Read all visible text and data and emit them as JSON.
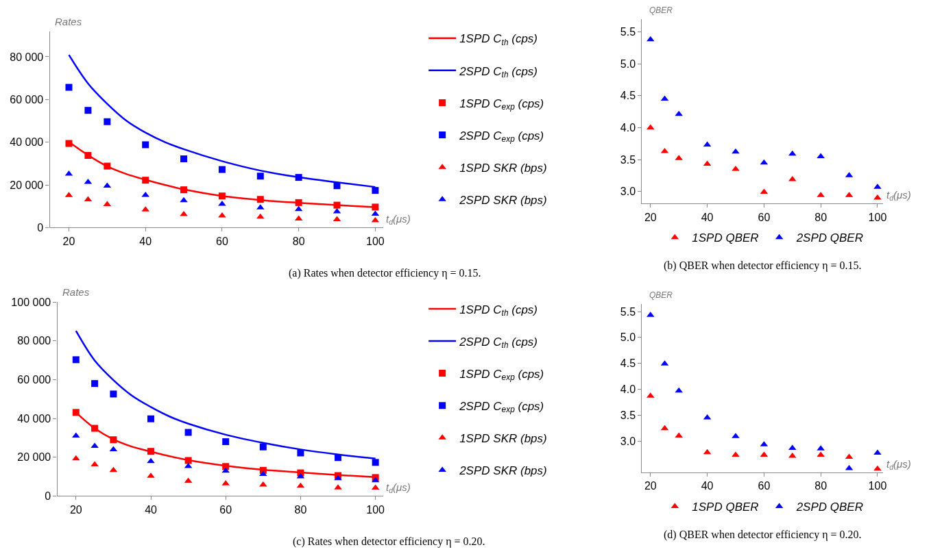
{
  "chart_data": [
    {
      "type": "scatter",
      "ylabel": "Rates",
      "xlabel": "t$_{d}$(μs)",
      "annotations": [
        "(a) Rates when detector efficiency η = 0.15."
      ],
      "legend": "right",
      "x": [
        20,
        25,
        30,
        40,
        50,
        60,
        70,
        80,
        90,
        100
      ],
      "xlim": [
        15,
        102
      ],
      "xticks": [
        20,
        40,
        60,
        80,
        100
      ],
      "ylim": [
        0,
        91800
      ],
      "yticks": [
        0,
        {
          "value": 20000,
          "label": "20 000"
        },
        {
          "value": 40000,
          "label": "40 000"
        },
        {
          "value": 60000,
          "label": "60 000"
        },
        {
          "value": 80000,
          "label": "80 000"
        }
      ],
      "series": [
        {
          "name": "1SPD C$_{th}$ (cps)",
          "type": "line",
          "color": "#ff0000",
          "x": [
            20,
            25,
            30,
            35,
            40,
            45,
            50,
            60,
            70,
            80,
            90,
            100
          ],
          "values": [
            40100,
            33900,
            28700,
            25100,
            22400,
            20000,
            17900,
            14800,
            12900,
            11600,
            10500,
            9600
          ]
        },
        {
          "name": "2SPD C$_{th}$ (cps)",
          "type": "line",
          "color": "#0000ff",
          "x": [
            20,
            25,
            30,
            35,
            40,
            45,
            50,
            60,
            70,
            80,
            90,
            100
          ],
          "values": [
            80900,
            67500,
            58000,
            50100,
            44500,
            40100,
            36700,
            31100,
            26700,
            23600,
            21200,
            19000
          ]
        },
        {
          "name": "1SPD C$_{exp}$ (cps)",
          "type": "scatter",
          "marker": "square",
          "color": "#ff0000",
          "values": [
            39400,
            33800,
            28800,
            22200,
            17700,
            14800,
            13200,
            11700,
            10500,
            9600
          ]
        },
        {
          "name": "2SPD C$_{exp}$ (cps)",
          "type": "scatter",
          "marker": "square",
          "color": "#0000ff",
          "values": [
            65700,
            54900,
            49600,
            38800,
            32200,
            27200,
            24100,
            23500,
            19600,
            17400
          ]
        },
        {
          "name": "1SPD SKR (bps)",
          "type": "scatter",
          "marker": "triangle",
          "color": "#ff0000",
          "values": [
            15100,
            13100,
            10900,
            8400,
            6200,
            5600,
            5000,
            4100,
            3800,
            3300
          ]
        },
        {
          "name": "2SPD SKR (bps)",
          "type": "scatter",
          "marker": "triangle",
          "color": "#0000ff",
          "values": [
            25100,
            21300,
            19500,
            15200,
            12700,
            11000,
            9300,
            8500,
            7500,
            6400
          ]
        }
      ]
    },
    {
      "type": "scatter",
      "ylabel": "QBER",
      "xlabel": "t$_{d}$(μs)",
      "annotations": [
        "(b) QBER when detector efficiency η = 0.15."
      ],
      "legend": "bottom",
      "marker": "triangle",
      "x": [
        20,
        25,
        30,
        40,
        50,
        60,
        70,
        80,
        90,
        100
      ],
      "xlim": [
        17,
        102
      ],
      "xticks": [
        20,
        40,
        60,
        80,
        100
      ],
      "ylim": [
        2.81,
        5.7
      ],
      "yticks": [
        {
          "value": 3.0,
          "label": "3.0"
        },
        3.5,
        {
          "value": 4.0,
          "label": "4.0"
        },
        4.5,
        {
          "value": 5.0,
          "label": "5.0"
        },
        5.5
      ],
      "series": [
        {
          "name": "1SPD QBER",
          "color": "#ff0000",
          "values": [
            4.0,
            3.63,
            3.52,
            3.43,
            3.35,
            2.99,
            3.19,
            2.94,
            2.94,
            2.9
          ]
        },
        {
          "name": "2SPD QBER",
          "color": "#0000ff",
          "values": [
            5.38,
            4.45,
            4.21,
            3.73,
            3.62,
            3.45,
            3.59,
            3.55,
            3.25,
            3.07
          ]
        }
      ]
    },
    {
      "type": "scatter",
      "ylabel": "Rates",
      "xlabel": "t$_{d}$(μs)",
      "annotations": [
        "(c) Rates when detector efficiency η = 0.20."
      ],
      "legend": "right",
      "x": [
        20,
        25,
        30,
        40,
        50,
        60,
        70,
        80,
        90,
        100
      ],
      "xlim": [
        15,
        102
      ],
      "xticks": [
        20,
        40,
        60,
        80,
        100
      ],
      "ylim": [
        0,
        100000
      ],
      "yticks": [
        0,
        {
          "value": 20000,
          "label": "20 000"
        },
        {
          "value": 40000,
          "label": "40 000"
        },
        {
          "value": 60000,
          "label": "60 000"
        },
        {
          "value": 80000,
          "label": "80 000"
        },
        {
          "value": 100000,
          "label": "100 000"
        }
      ],
      "series": [
        {
          "name": "1SPD C$_{th}$ (cps)",
          "type": "line",
          "color": "#ff0000",
          "x": [
            20,
            25,
            30,
            35,
            40,
            45,
            50,
            60,
            70,
            80,
            90,
            100
          ],
          "values": [
            43100,
            34900,
            29200,
            25400,
            22900,
            20500,
            18500,
            15600,
            13500,
            12100,
            10800,
            9700
          ]
        },
        {
          "name": "2SPD C$_{th}$ (cps)",
          "type": "line",
          "color": "#0000ff",
          "x": [
            20,
            25,
            30,
            35,
            40,
            45,
            50,
            60,
            70,
            80,
            90,
            100
          ],
          "values": [
            85200,
            69900,
            59800,
            51700,
            45900,
            41000,
            37300,
            31600,
            27400,
            24000,
            21400,
            19300
          ]
        },
        {
          "name": "1SPD C$_{exp}$ (cps)",
          "type": "scatter",
          "marker": "square",
          "color": "#ff0000",
          "values": [
            43100,
            34900,
            29000,
            23000,
            18300,
            15200,
            13200,
            11900,
            10500,
            9500
          ]
        },
        {
          "name": "2SPD C$_{exp}$ (cps)",
          "type": "scatter",
          "marker": "square",
          "color": "#0000ff",
          "values": [
            70300,
            58000,
            52600,
            39800,
            32800,
            28000,
            25300,
            22200,
            19800,
            17300
          ]
        },
        {
          "name": "1SPD SKR (bps)",
          "type": "scatter",
          "marker": "triangle",
          "color": "#ff0000",
          "values": [
            19300,
            16200,
            13300,
            10300,
            7700,
            6400,
            5800,
            5100,
            4300,
            4200
          ]
        },
        {
          "name": "2SPD SKR (bps)",
          "type": "scatter",
          "marker": "triangle",
          "color": "#0000ff",
          "values": [
            31000,
            25700,
            24000,
            17900,
            15300,
            12900,
            11200,
            10000,
            9000,
            8000
          ]
        }
      ]
    },
    {
      "type": "scatter",
      "ylabel": "QBER",
      "xlabel": "t$_{d}$(μs)",
      "annotations": [
        "(d) QBER when detector efficiency η = 0.20."
      ],
      "legend": "bottom",
      "marker": "triangle",
      "x": [
        20,
        25,
        30,
        40,
        50,
        60,
        70,
        80,
        90,
        100
      ],
      "xlim": [
        17,
        102
      ],
      "xticks": [
        20,
        40,
        60,
        80,
        100
      ],
      "ylim": [
        2.39,
        5.65
      ],
      "yticks": [
        {
          "value": 3.0,
          "label": "3.0"
        },
        3.5,
        {
          "value": 4.0,
          "label": "4.0"
        },
        4.5,
        {
          "value": 5.0,
          "label": "5.0"
        },
        5.5
      ],
      "series": [
        {
          "name": "1SPD QBER",
          "color": "#ff0000",
          "values": [
            3.87,
            3.24,
            3.1,
            2.78,
            2.73,
            2.73,
            2.71,
            2.73,
            2.69,
            2.46
          ]
        },
        {
          "name": "2SPD QBER",
          "color": "#0000ff",
          "values": [
            5.43,
            4.49,
            3.97,
            3.45,
            3.09,
            2.93,
            2.86,
            2.85,
            2.47,
            2.77
          ]
        }
      ]
    }
  ]
}
